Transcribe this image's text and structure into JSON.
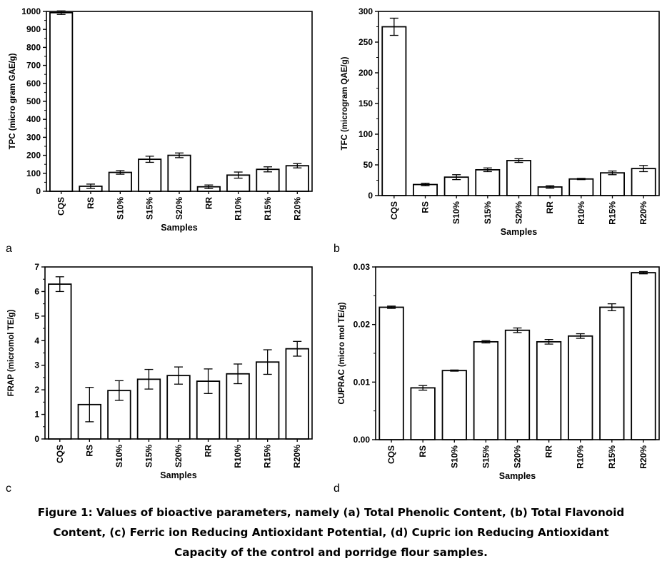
{
  "caption_lines": [
    "Figure 1: Values of bioactive parameters, namely (a) Total Phenolic Content, (b) Total Flavonoid",
    "Content, (c) Ferric ion Reducing Antioxidant Potential, (d) Cupric ion Reducing Antioxidant",
    "Capacity of the control and porridge flour samples."
  ],
  "chart_data": [
    {
      "panel": "a",
      "type": "bar",
      "categories": [
        "CQS",
        "RS",
        "S10%",
        "S15%",
        "S20%",
        "RR",
        "R10%",
        "R15%",
        "R20%"
      ],
      "values": [
        993,
        28,
        105,
        178,
        200,
        25,
        90,
        122,
        142
      ],
      "errors": [
        10,
        12,
        10,
        17,
        13,
        10,
        17,
        14,
        12
      ],
      "xlabel": "Samples",
      "ylabel": "TPC (micro gram GAE/g)",
      "ylim": [
        0,
        1000
      ],
      "yticks": [
        0,
        100,
        200,
        300,
        400,
        500,
        600,
        700,
        800,
        900,
        1000
      ],
      "ytick_labels": [
        "0",
        "100",
        "200",
        "300",
        "400",
        "500",
        "600",
        "700",
        "800",
        "900",
        "1000"
      ],
      "legend": "none",
      "grid": false
    },
    {
      "panel": "b",
      "type": "bar",
      "categories": [
        "CQS",
        "RS",
        "S10%",
        "S15%",
        "S20%",
        "RR",
        "R10%",
        "R15%",
        "R20%"
      ],
      "values": [
        275,
        18,
        30,
        42,
        57,
        14,
        27,
        37,
        44
      ],
      "errors": [
        14,
        2,
        4,
        3,
        3,
        2,
        1,
        3,
        5
      ],
      "xlabel": "Samples",
      "ylabel": "TFC (microgram QAE/g)",
      "ylim": [
        0,
        300
      ],
      "yticks": [
        0,
        50,
        100,
        150,
        200,
        250,
        300
      ],
      "ytick_labels": [
        "0",
        "50",
        "100",
        "150",
        "200",
        "250",
        "300"
      ],
      "legend": "none",
      "grid": false
    },
    {
      "panel": "c",
      "type": "bar",
      "categories": [
        "CQS",
        "RS",
        "S10%",
        "S15%",
        "S20%",
        "RR",
        "R10%",
        "R15%",
        "R20%"
      ],
      "values": [
        6.3,
        1.4,
        1.97,
        2.43,
        2.58,
        2.35,
        2.65,
        3.13,
        3.67
      ],
      "errors": [
        0.3,
        0.7,
        0.4,
        0.4,
        0.35,
        0.5,
        0.4,
        0.5,
        0.3
      ],
      "xlabel": "Samples",
      "ylabel": "FRAP (micromol TE/g)",
      "ylim": [
        0,
        7
      ],
      "yticks": [
        0,
        1,
        2,
        3,
        4,
        5,
        6,
        7
      ],
      "ytick_labels": [
        "0",
        "1",
        "2",
        "3",
        "4",
        "5",
        "6",
        "7"
      ],
      "legend": "none",
      "grid": false
    },
    {
      "panel": "d",
      "type": "bar",
      "categories": [
        "CQS",
        "RS",
        "S10%",
        "S15%",
        "S20%",
        "RR",
        "R10%",
        "R15%",
        "R20%"
      ],
      "values": [
        0.023,
        0.009,
        0.012,
        0.017,
        0.019,
        0.017,
        0.018,
        0.023,
        0.029
      ],
      "errors": [
        0.0002,
        0.0004,
        0.0001,
        0.0002,
        0.0004,
        0.0004,
        0.0004,
        0.0006,
        0.0002
      ],
      "xlabel": "Samples",
      "ylabel": "CUPRAC (micro mol TE/g)",
      "ylim": [
        0,
        0.03
      ],
      "yticks": [
        0,
        0.01,
        0.02,
        0.03
      ],
      "ytick_labels": [
        "0.00",
        "0.01",
        "0.02",
        "0.03"
      ],
      "legend": "none",
      "grid": false
    }
  ]
}
